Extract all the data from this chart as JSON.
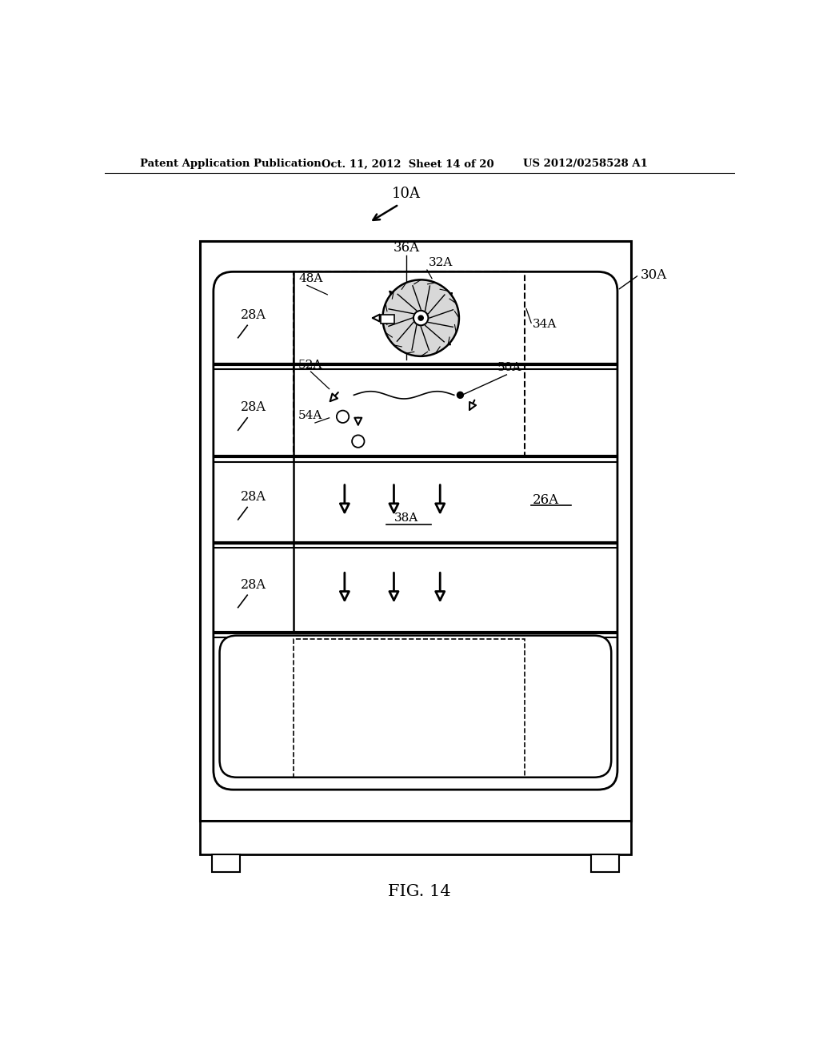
{
  "bg_color": "#ffffff",
  "header_left": "Patent Application Publication",
  "header_mid": "Oct. 11, 2012  Sheet 14 of 20",
  "header_right": "US 2012/0258528 A1",
  "fig_label": "FIG. 14",
  "label_10A": "10A",
  "label_30A": "30A",
  "label_36A": "36A",
  "label_34A": "34A",
  "label_32A": "32A",
  "label_48A": "48A",
  "label_28A": "28A",
  "label_50A": "50A",
  "label_52A": "52A",
  "label_54A": "54A",
  "label_38A": "38A",
  "label_26A": "26A"
}
